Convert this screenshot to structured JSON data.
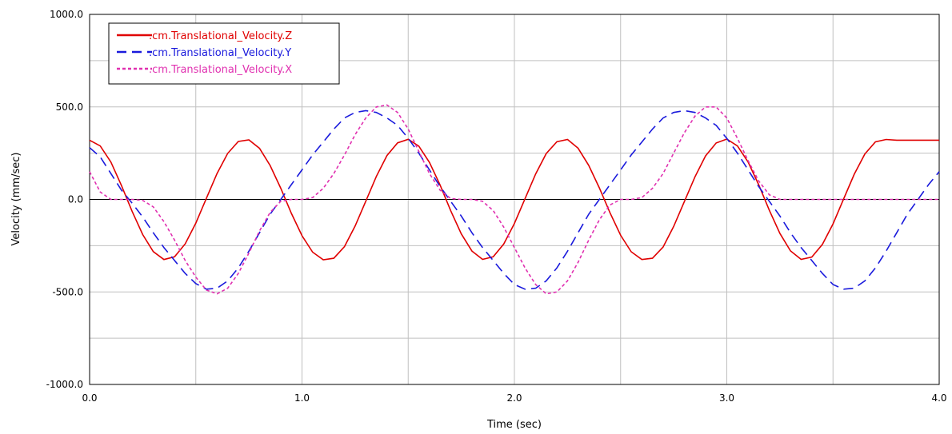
{
  "chart_data": {
    "type": "line",
    "title": "",
    "xlabel": "Time (sec)",
    "ylabel": "Velocity (mm/sec)",
    "xlim": [
      0,
      4
    ],
    "ylim": [
      -1000,
      1000
    ],
    "x_ticks": [
      0,
      1,
      2,
      3,
      4
    ],
    "x_tick_labels": [
      "0.0",
      "1.0",
      "2.0",
      "3.0",
      "4.0"
    ],
    "y_ticks": [
      1000,
      500,
      0,
      -500,
      -1000
    ],
    "y_tick_labels": [
      "1000.0",
      "500.0",
      "0.0",
      "-500.0",
      "-1000.0"
    ],
    "grid": true,
    "legend_position": "top-left",
    "x": [
      0.0,
      0.05,
      0.1,
      0.15,
      0.2,
      0.25,
      0.3,
      0.35,
      0.4,
      0.45,
      0.5,
      0.55,
      0.6,
      0.65,
      0.7,
      0.75,
      0.8,
      0.85,
      0.9,
      0.95,
      1.0,
      1.05,
      1.1,
      1.15,
      1.2,
      1.25,
      1.3,
      1.35,
      1.4,
      1.45,
      1.5,
      1.55,
      1.6,
      1.65,
      1.7,
      1.75,
      1.8,
      1.85,
      1.9,
      1.95,
      2.0,
      2.05,
      2.1,
      2.15,
      2.2,
      2.25,
      2.3,
      2.35,
      2.4,
      2.45,
      2.5,
      2.55,
      2.6,
      2.65,
      2.7,
      2.75,
      2.8,
      2.85,
      2.9,
      2.95,
      3.0,
      3.05,
      3.1,
      3.15,
      3.2,
      3.25,
      3.3,
      3.35,
      3.4,
      3.45,
      3.5,
      3.55,
      3.6,
      3.65,
      3.7,
      3.75,
      3.8,
      3.85,
      3.9,
      3.95,
      4.0
    ],
    "series": [
      {
        "name": ".cm.Translational_Velocity.Z",
        "color": "#e00000",
        "dash": "solid",
        "values": [
          320,
          289,
          202,
          75,
          -64,
          -190,
          -282,
          -325,
          -310,
          -240,
          -128,
          6,
          140,
          249,
          313,
          322,
          276,
          183,
          60,
          -75,
          -196,
          -285,
          -326,
          -318,
          -255,
          -144,
          -10,
          124,
          237,
          306,
          325,
          288,
          200,
          78,
          -60,
          -186,
          -279,
          -324,
          -310,
          -241,
          -130,
          4,
          138,
          248,
          312,
          324,
          277,
          184,
          62,
          -72,
          -194,
          -283,
          -325,
          -318,
          -257,
          -146,
          -12,
          122,
          235,
          305,
          326,
          289,
          202,
          80,
          -58,
          -184,
          -278,
          -324,
          -312,
          -243,
          -132,
          2,
          136,
          246,
          311,
          324,
          320,
          320,
          320,
          320,
          320
        ]
      },
      {
        "name": ".cm.Translational_Velocity.Y",
        "color": "#1a1adc",
        "dash": "dashed",
        "values": [
          280,
          230,
          140,
          50,
          -20,
          -95,
          -180,
          -260,
          -330,
          -400,
          -455,
          -485,
          -480,
          -440,
          -370,
          -280,
          -180,
          -80,
          0,
          80,
          160,
          240,
          310,
          380,
          440,
          470,
          480,
          470,
          440,
          400,
          330,
          250,
          160,
          70,
          -10,
          -90,
          -180,
          -260,
          -330,
          -400,
          -460,
          -485,
          -480,
          -440,
          -370,
          -280,
          -180,
          -80,
          0,
          80,
          160,
          240,
          310,
          380,
          440,
          470,
          480,
          470,
          440,
          400,
          330,
          250,
          160,
          70,
          -10,
          -90,
          -180,
          -260,
          -330,
          -400,
          -460,
          -485,
          -480,
          -440,
          -370,
          -280,
          -180,
          -80,
          0,
          80,
          150
        ]
      },
      {
        "name": ".cm.Translational_Velocity.X",
        "color": "#e030b0",
        "dash": "dotted",
        "values": [
          150,
          40,
          0,
          0,
          0,
          -5,
          -40,
          -120,
          -220,
          -330,
          -420,
          -490,
          -510,
          -480,
          -400,
          -290,
          -170,
          -70,
          -10,
          0,
          0,
          10,
          60,
          140,
          240,
          350,
          440,
          500,
          510,
          470,
          380,
          260,
          140,
          50,
          5,
          0,
          0,
          -10,
          -60,
          -150,
          -260,
          -370,
          -460,
          -510,
          -500,
          -440,
          -340,
          -220,
          -110,
          -30,
          0,
          0,
          10,
          60,
          140,
          250,
          360,
          450,
          500,
          500,
          440,
          330,
          210,
          100,
          25,
          0,
          0,
          0,
          0,
          0,
          0,
          0,
          0,
          0,
          0,
          0,
          0,
          0,
          0,
          0,
          0
        ]
      }
    ]
  },
  "legend": {
    "items": [
      {
        "label": ".cm.Translational_Velocity.Z",
        "color": "#e00000",
        "dash": "solid"
      },
      {
        "label": ".cm.Translational_Velocity.Y",
        "color": "#1a1adc",
        "dash": "dashed"
      },
      {
        "label": ".cm.Translational_Velocity.X",
        "color": "#e030b0",
        "dash": "dotted"
      }
    ]
  }
}
